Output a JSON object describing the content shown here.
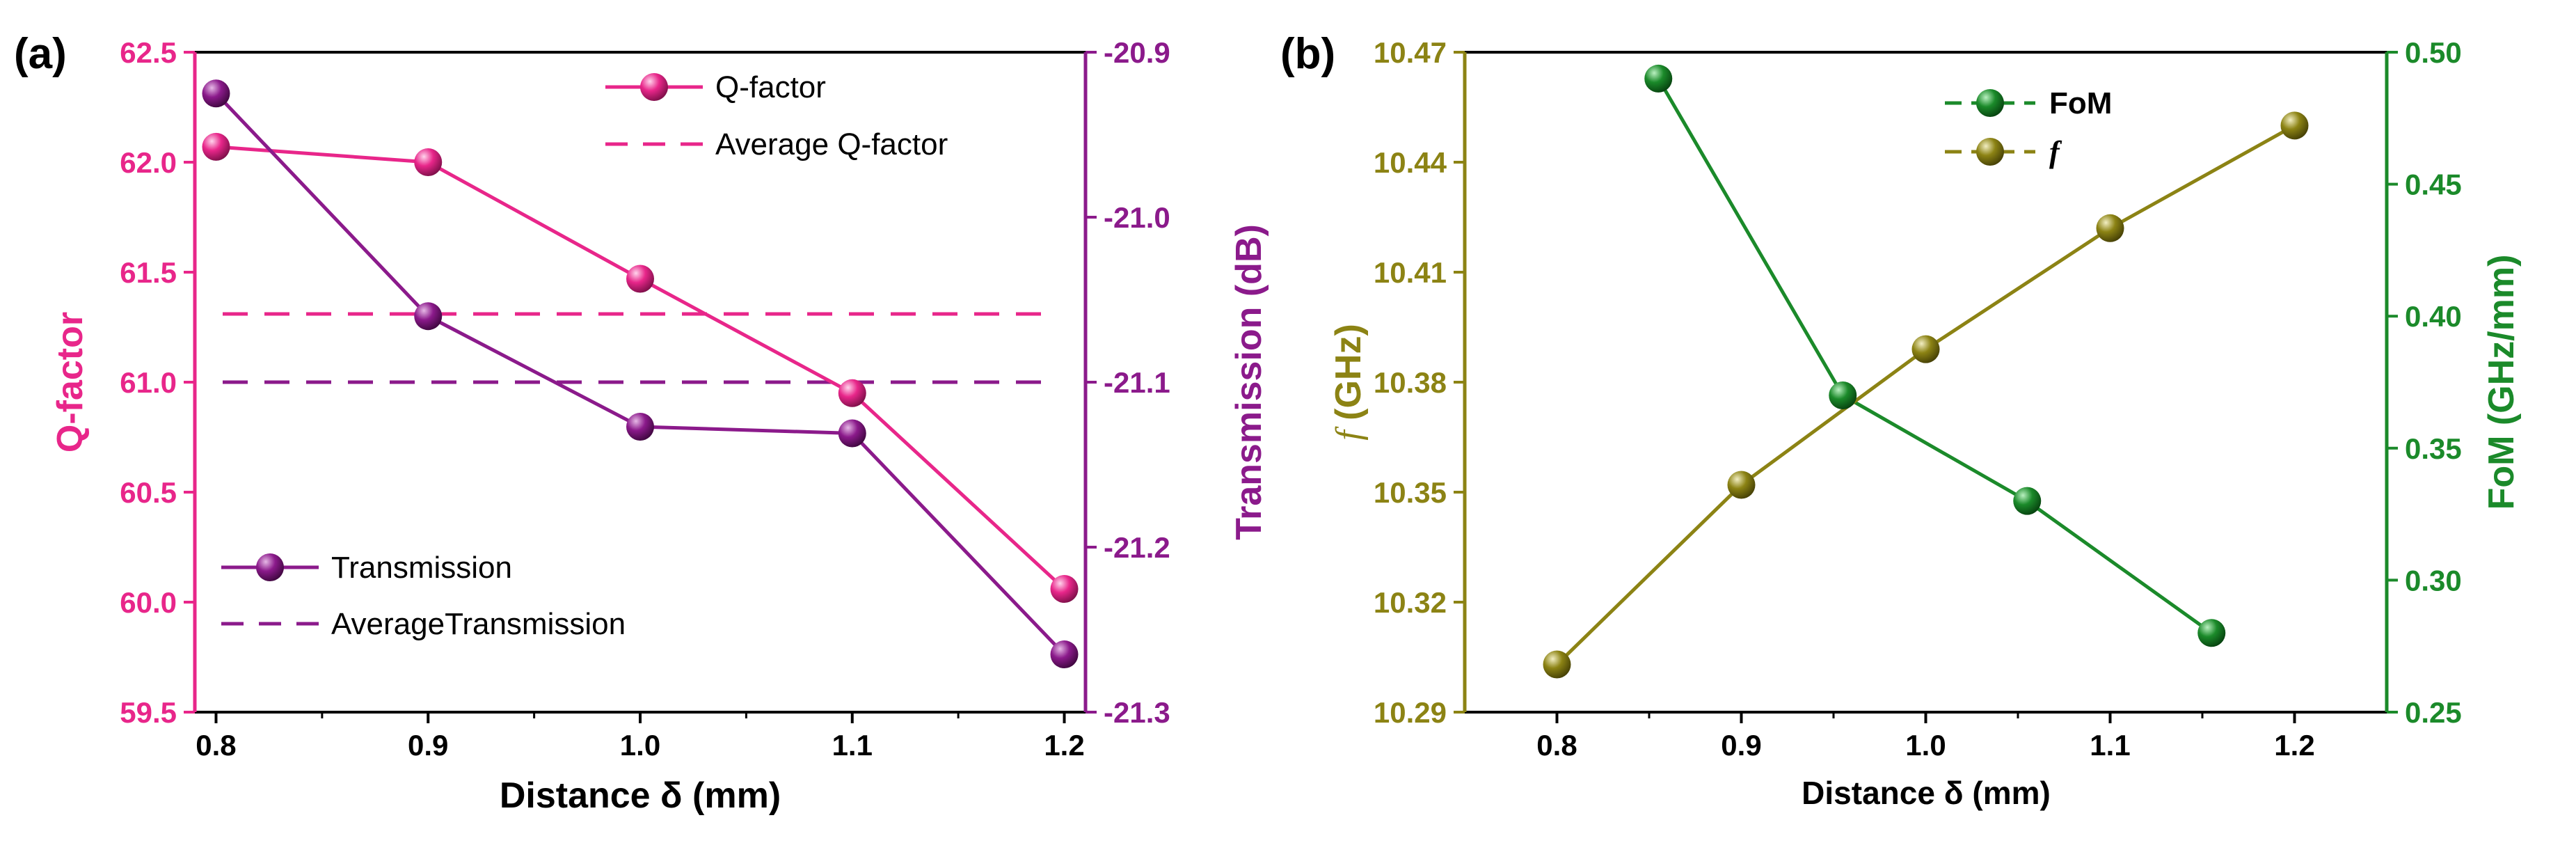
{
  "colors": {
    "pink": "#e8268a",
    "purple": "#8b1a8b",
    "olive": "#8c8314",
    "green": "#1b8a2a",
    "black": "#000000"
  },
  "chart_data": [
    {
      "panel": "(a)",
      "type": "line",
      "xlabel": "Distance δ (mm)",
      "ylabel_left": "Q-factor",
      "ylabel_right": "Transmission (dB)",
      "x_ticks": [
        "0.8",
        "0.9",
        "1.0",
        "1.1",
        "1.2"
      ],
      "xlim": [
        0.79,
        1.21
      ],
      "yleft_ticks": [
        "59.5",
        "60.0",
        "60.5",
        "61.0",
        "61.5",
        "62.0",
        "62.5"
      ],
      "yleft_lim": [
        59.5,
        62.5
      ],
      "yright_ticks": [
        "-21.3",
        "-21.2",
        "-21.1",
        "-21.0",
        "-20.9"
      ],
      "yright_lim": [
        -21.3,
        -20.9
      ],
      "series": [
        {
          "name": "Q-factor",
          "axis": "left",
          "color": "pink",
          "x": [
            0.8,
            0.9,
            1.0,
            1.1,
            1.2
          ],
          "values": [
            62.07,
            62.0,
            61.47,
            60.95,
            60.06
          ]
        },
        {
          "name": "Transmission",
          "axis": "right",
          "color": "purple",
          "x": [
            0.8,
            0.9,
            1.0,
            1.1,
            1.2
          ],
          "values": [
            -20.925,
            -21.06,
            -21.127,
            -21.131,
            -21.265
          ]
        }
      ],
      "reference_lines": [
        {
          "name": "Average Q-factor",
          "axis": "left",
          "color": "pink",
          "value": 61.31
        },
        {
          "name": "AverageTransmission",
          "axis": "left",
          "color": "purple",
          "value": 61.0
        }
      ],
      "legend": [
        {
          "label": "Q-factor",
          "style": "line-marker",
          "color": "pink"
        },
        {
          "label": "Average Q-factor",
          "style": "dash",
          "color": "pink"
        },
        {
          "label": "Transmission",
          "style": "line-marker",
          "color": "purple"
        },
        {
          "label": "AverageTransmission",
          "style": "dash",
          "color": "purple"
        }
      ]
    },
    {
      "panel": "(b)",
      "type": "line",
      "xlabel": "Distance δ (mm)",
      "ylabel_left": "f (GHz)",
      "ylabel_left_symbol": "f",
      "ylabel_left_rest": " (GHz)",
      "ylabel_right": "FoM (GHz/mm)",
      "x_ticks": [
        "0.8",
        "0.9",
        "1.0",
        "1.1",
        "1.2"
      ],
      "xlim": [
        0.75,
        1.25
      ],
      "yleft_ticks": [
        "10.29",
        "10.32",
        "10.35",
        "10.38",
        "10.41",
        "10.44",
        "10.47"
      ],
      "yleft_lim": [
        10.29,
        10.47
      ],
      "yright_ticks": [
        "0.25",
        "0.30",
        "0.35",
        "0.40",
        "0.45",
        "0.50"
      ],
      "yright_lim": [
        0.25,
        0.5
      ],
      "series": [
        {
          "name": "FoM",
          "axis": "right",
          "color": "green",
          "x": [
            0.855,
            0.955,
            1.055,
            1.155
          ],
          "values": [
            0.49,
            0.37,
            0.33,
            0.28
          ]
        },
        {
          "name": "f",
          "axis": "left",
          "color": "olive",
          "x": [
            0.8,
            0.9,
            1.0,
            1.1,
            1.2
          ],
          "values": [
            10.303,
            10.352,
            10.389,
            10.422,
            10.45
          ]
        }
      ],
      "legend": [
        {
          "label": "FoM",
          "style": "line-marker",
          "color": "green"
        },
        {
          "label": "f",
          "style": "line-marker",
          "color": "olive"
        }
      ]
    }
  ]
}
